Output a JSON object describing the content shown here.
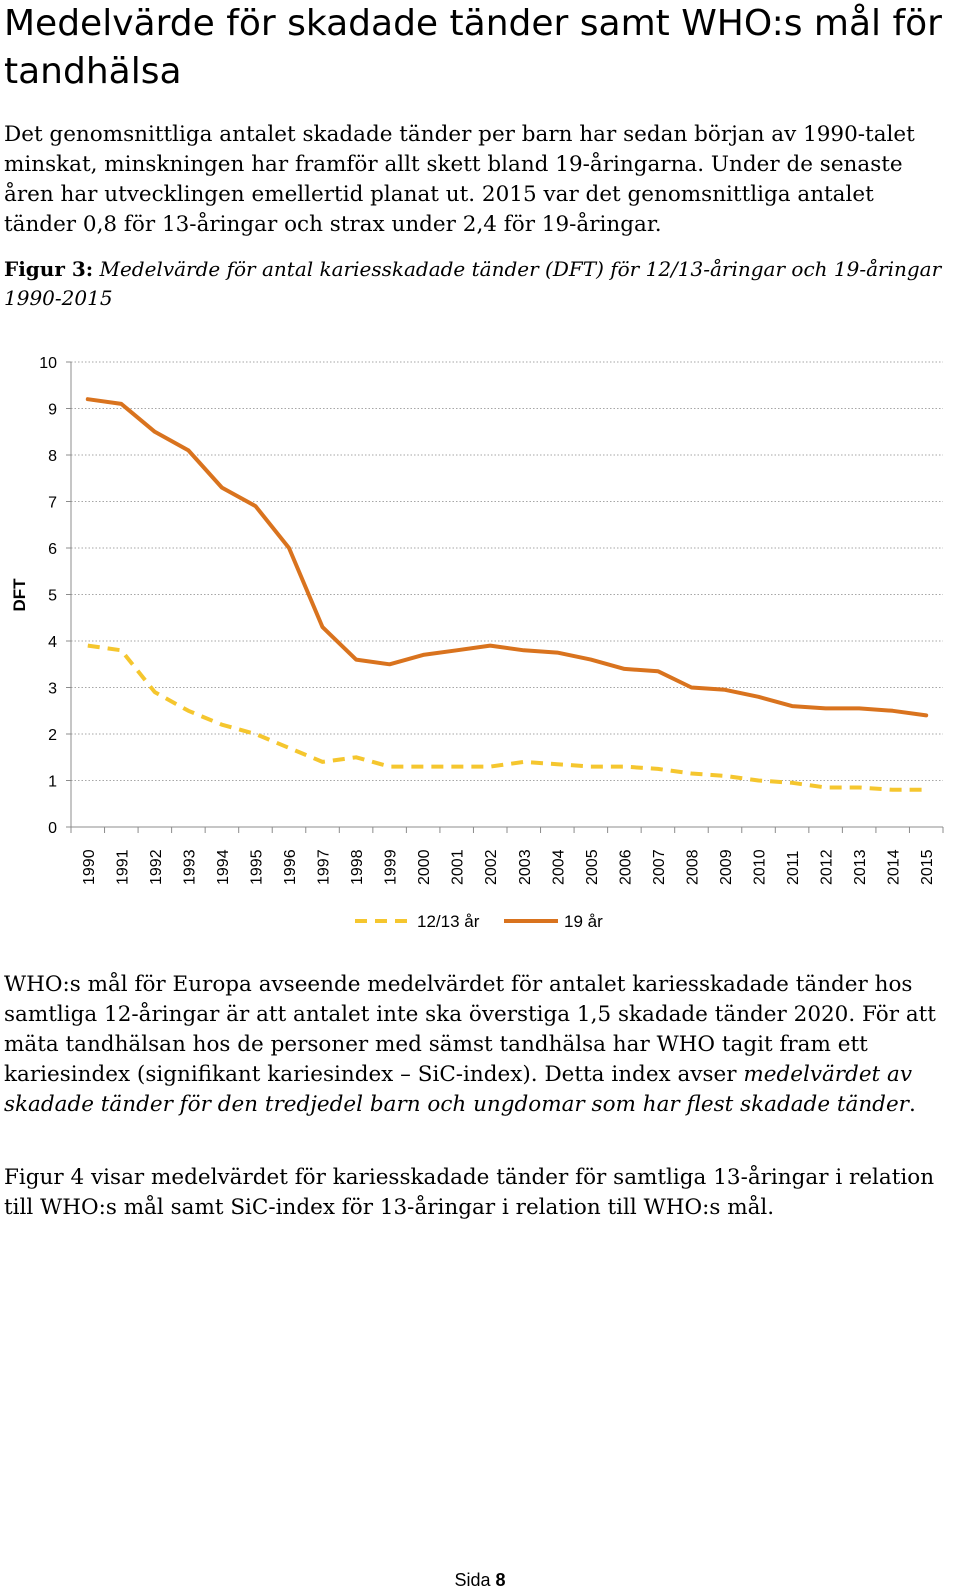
{
  "document": {
    "title": "Medelvärde för skadade tänder samt WHO:s mål för tandhälsa",
    "para1": "Det genomsnittliga antalet skadade tänder per barn har sedan början av 1990-talet minskat, minskningen har framför allt skett bland 19-åringarna. Under de senaste åren har utvecklingen emellertid planat ut. 2015 var det genomsnittliga antalet tänder 0,8 för 13-åringar och strax under 2,4 för 19-åringar.",
    "caption_lead": "Figur 3:",
    "caption_rest": " Medelvärde för antal kariesskadade tänder (DFT) för 12/13-åringar och 19-åringar 1990-2015",
    "para2_a": "WHO:s mål för Europa avseende medelvärdet för antalet kariesskadade tänder hos samtliga 12-åringar är att antalet inte ska överstiga 1,5 skadade tänder 2020. För att mäta tandhälsan hos de personer med sämst tandhälsa har WHO tagit fram ett kariesindex (signifikant kariesindex – SiC-index). Detta index avser ",
    "para2_em": "medelvärdet av skadade tänder för den tredjedel barn och ungdomar som har flest skadade tänder",
    "para2_b": ".",
    "para3": "Figur 4 visar medelvärdet för kariesskadade tänder för samtliga 13-åringar i relation till WHO:s mål samt SiC-index för 13-åringar i relation till WHO:s mål.",
    "footer_label": "Sida",
    "footer_num": "8"
  },
  "chart_data": {
    "type": "line",
    "title": "",
    "xlabel": "",
    "ylabel": "DFT",
    "ylim": [
      0,
      10
    ],
    "yticks": [
      0,
      1,
      2,
      3,
      4,
      5,
      6,
      7,
      8,
      9,
      10
    ],
    "legend_position": "bottom",
    "categories": [
      "1990",
      "1991",
      "1992",
      "1993",
      "1994",
      "1995",
      "1996",
      "1997",
      "1998",
      "1999",
      "2000",
      "2001",
      "2002",
      "2003",
      "2004",
      "2005",
      "2006",
      "2007",
      "2008",
      "2009",
      "2010",
      "2011",
      "2012",
      "2013",
      "2014",
      "2015"
    ],
    "series": [
      {
        "name": "12/13 år",
        "color": "#F5C62E",
        "dash": true,
        "values": [
          3.9,
          3.8,
          2.9,
          2.5,
          2.2,
          2.0,
          1.7,
          1.4,
          1.5,
          1.3,
          1.3,
          1.3,
          1.3,
          1.4,
          1.35,
          1.3,
          1.3,
          1.25,
          1.15,
          1.1,
          1.0,
          0.95,
          0.85,
          0.85,
          0.8,
          0.8
        ]
      },
      {
        "name": "19 år",
        "color": "#D9731E",
        "dash": false,
        "values": [
          9.2,
          9.1,
          8.5,
          8.1,
          7.3,
          6.9,
          6.0,
          4.3,
          3.6,
          3.5,
          3.7,
          3.8,
          3.9,
          3.8,
          3.75,
          3.6,
          3.4,
          3.35,
          3.0,
          2.95,
          2.8,
          2.6,
          2.55,
          2.55,
          2.5,
          2.4
        ]
      }
    ]
  }
}
